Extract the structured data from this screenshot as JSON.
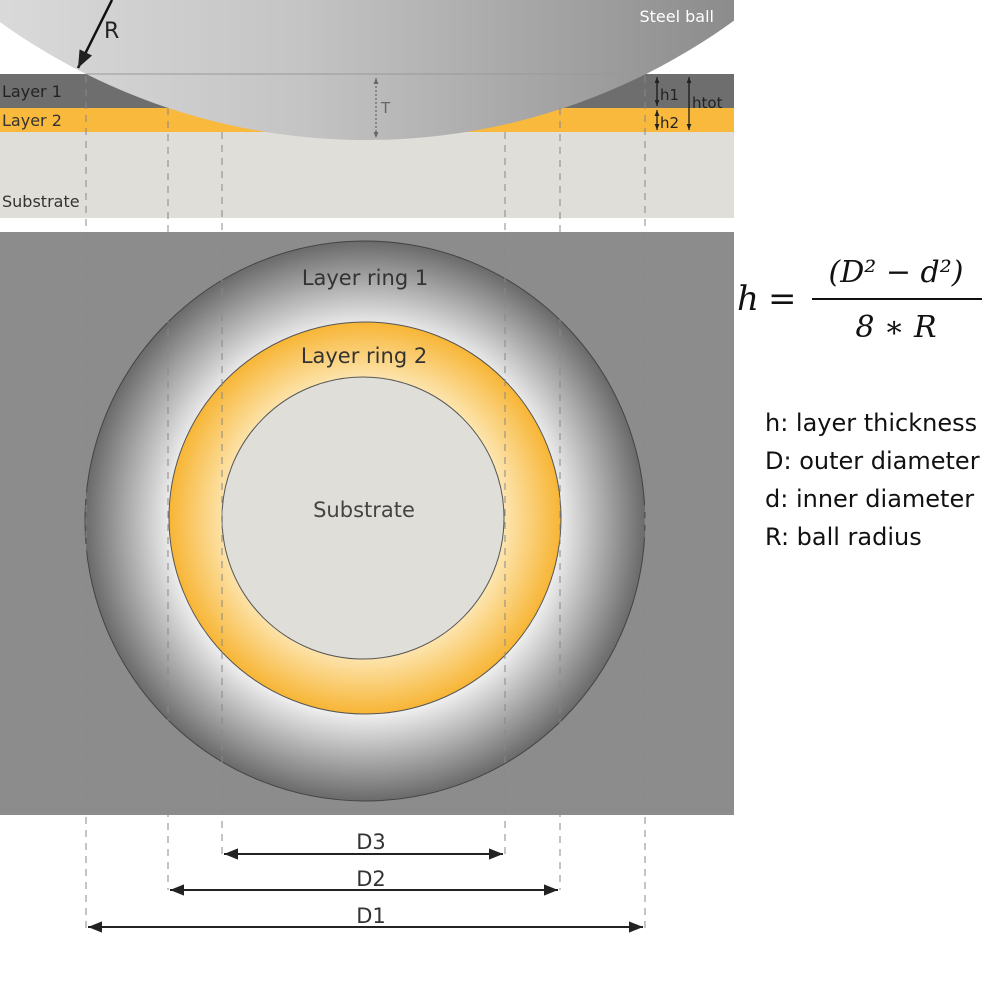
{
  "cross_section": {
    "ball_label": "Steel ball",
    "radius_label": "R",
    "layer1_label": "Layer 1",
    "layer2_label": "Layer 2",
    "substrate_label": "Substrate",
    "depth_label": "T",
    "h1_label": "h1",
    "h2_label": "h2",
    "htot_label": "htot"
  },
  "top_view": {
    "ring1_label": "Layer ring 1",
    "ring2_label": "Layer ring 2",
    "substrate_label": "Substrate"
  },
  "dimensions": {
    "d1_label": "D1",
    "d2_label": "D2",
    "d3_label": "D3"
  },
  "formula": {
    "lhs": "h",
    "equals": "=",
    "numerator": "(D² − d²)",
    "denominator": "8 ∗ R"
  },
  "legend": [
    "h: layer thickness",
    "D: outer diameter",
    "d: inner diameter",
    "R: ball radius"
  ],
  "colors": {
    "layer1": "#6e6e6e",
    "layer2": "#f8b93c",
    "substrate": "#e0ded8",
    "panel": "#8c8c8c"
  }
}
